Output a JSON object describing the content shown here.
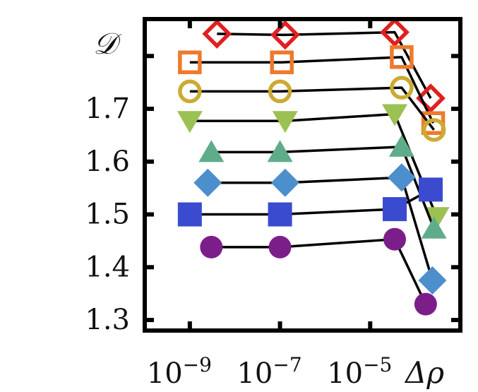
{
  "chart_data": {
    "type": "scatter",
    "ylabel": "𝒟",
    "xlabel": "Δρ",
    "x_scale": "log",
    "xlim": [
      1e-10,
      0.001
    ],
    "ylim": [
      1.28,
      1.87
    ],
    "y_ticks": [
      1.3,
      1.4,
      1.5,
      1.6,
      1.7
    ],
    "y_tick_labels": [
      "1.3",
      "1.4",
      "1.5",
      "1.6",
      "1.7"
    ],
    "x_ticks": [
      1e-09,
      1e-07,
      1e-05
    ],
    "x_tick_labels": [
      {
        "base": "10",
        "exp": "−9"
      },
      {
        "base": "10",
        "exp": "−7"
      },
      {
        "base": "10",
        "exp": "−5"
      }
    ],
    "extra_y_ticks": [
      1.8
    ],
    "grid": false,
    "series": [
      {
        "marker": "diamond-open",
        "color": "#e02020",
        "points": [
          [
            4e-09,
            1.842
          ],
          [
            1.3e-07,
            1.84
          ],
          [
            3.5e-05,
            1.845
          ],
          [
            0.00022,
            1.72
          ]
        ]
      },
      {
        "marker": "square-open",
        "color": "#ee7a2c",
        "points": [
          [
            1e-09,
            1.788
          ],
          [
            1.1e-07,
            1.788
          ],
          [
            5e-05,
            1.798
          ],
          [
            0.00025,
            1.673
          ]
        ]
      },
      {
        "marker": "circle-open",
        "color": "#ccaa33",
        "points": [
          [
            1e-09,
            1.733
          ],
          [
            1e-07,
            1.733
          ],
          [
            5e-05,
            1.74
          ],
          [
            0.00026,
            1.66
          ]
        ]
      },
      {
        "marker": "triangle-down",
        "color": "#9bc153",
        "points": [
          [
            1e-09,
            1.677
          ],
          [
            1.3e-07,
            1.677
          ],
          [
            3.5e-05,
            1.69
          ],
          [
            0.0003,
            1.495
          ]
        ]
      },
      {
        "marker": "triangle-up",
        "color": "#5fac8a",
        "points": [
          [
            3e-09,
            1.618
          ],
          [
            1e-07,
            1.618
          ],
          [
            5e-05,
            1.628
          ],
          [
            0.00026,
            1.473
          ]
        ]
      },
      {
        "marker": "diamond",
        "color": "#4c8fcc",
        "points": [
          [
            2.5e-09,
            1.56
          ],
          [
            1.3e-07,
            1.56
          ],
          [
            5e-05,
            1.57
          ],
          [
            0.00024,
            1.375
          ]
        ]
      },
      {
        "marker": "square",
        "color": "#3a4bcf",
        "points": [
          [
            1e-09,
            1.5
          ],
          [
            1e-07,
            1.5
          ],
          [
            3.5e-05,
            1.51
          ],
          [
            0.00022,
            1.547
          ]
        ]
      },
      {
        "marker": "circle",
        "color": "#7b1e8a",
        "points": [
          [
            3e-09,
            1.438
          ],
          [
            1e-07,
            1.438
          ],
          [
            3.5e-05,
            1.453
          ],
          [
            0.00017,
            1.33
          ]
        ]
      }
    ]
  }
}
